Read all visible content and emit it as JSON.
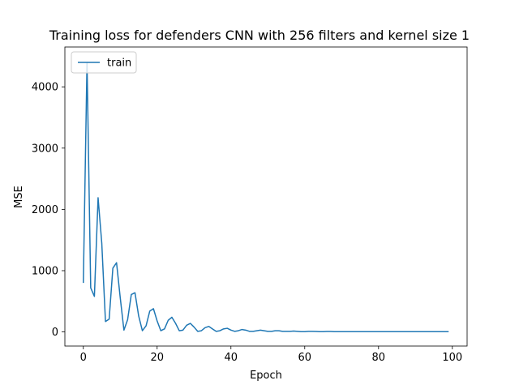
{
  "chart_data": {
    "type": "line",
    "title": "Training loss for defenders CNN with 256 filters and kernel size 1",
    "xlabel": "Epoch",
    "ylabel": "MSE",
    "xlim": [
      -5,
      104
    ],
    "ylim": [
      -230,
      4650
    ],
    "xticks": [
      0,
      20,
      40,
      60,
      80,
      100
    ],
    "yticks": [
      0,
      1000,
      2000,
      3000,
      4000
    ],
    "grid": false,
    "legend_position": "top-left",
    "series": [
      {
        "name": "train",
        "color": "#1f77b4",
        "x": [
          0,
          1,
          2,
          3,
          4,
          5,
          6,
          7,
          8,
          9,
          10,
          11,
          12,
          13,
          14,
          15,
          16,
          17,
          18,
          19,
          20,
          21,
          22,
          23,
          24,
          25,
          26,
          27,
          28,
          29,
          30,
          31,
          32,
          33,
          34,
          35,
          36,
          37,
          38,
          39,
          40,
          41,
          42,
          43,
          44,
          45,
          46,
          47,
          48,
          49,
          50,
          51,
          52,
          53,
          54,
          55,
          56,
          57,
          58,
          59,
          60,
          61,
          62,
          63,
          64,
          65,
          66,
          67,
          68,
          69,
          70,
          71,
          72,
          73,
          74,
          75,
          76,
          77,
          78,
          79,
          80,
          81,
          82,
          83,
          84,
          85,
          86,
          87,
          88,
          89,
          90,
          91,
          92,
          93,
          94,
          95,
          96,
          97,
          98,
          99
        ],
        "values": [
          800,
          4400,
          720,
          580,
          2190,
          1450,
          170,
          210,
          1040,
          1130,
          560,
          30,
          200,
          610,
          640,
          260,
          20,
          100,
          340,
          380,
          180,
          20,
          50,
          190,
          240,
          140,
          20,
          30,
          110,
          140,
          80,
          10,
          20,
          70,
          90,
          50,
          10,
          20,
          50,
          60,
          30,
          10,
          20,
          40,
          30,
          10,
          10,
          20,
          30,
          20,
          10,
          10,
          20,
          20,
          10,
          10,
          10,
          15,
          10,
          5,
          5,
          10,
          10,
          8,
          5,
          5,
          8,
          8,
          5,
          5,
          5,
          5,
          5,
          5,
          5,
          5,
          5,
          5,
          5,
          5,
          5,
          5,
          5,
          5,
          5,
          5,
          5,
          5,
          5,
          5,
          5,
          5,
          5,
          5,
          5,
          5,
          5,
          5,
          5,
          5
        ]
      }
    ]
  }
}
